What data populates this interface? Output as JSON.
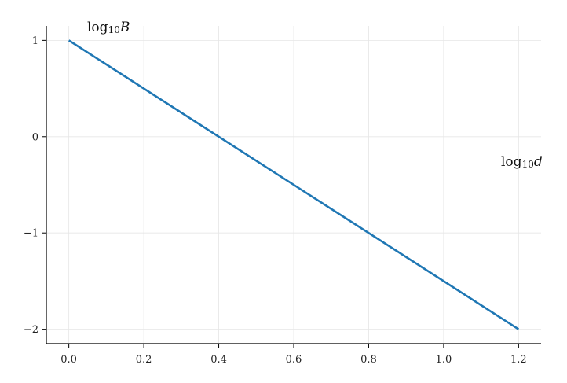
{
  "chart_data": {
    "type": "line",
    "xlabel": {
      "base": "log",
      "sub": "10",
      "var": "d"
    },
    "ylabel": {
      "base": "log",
      "sub": "10",
      "var": "B"
    },
    "xlim": [
      -0.06,
      1.26
    ],
    "ylim": [
      -2.15,
      1.15
    ],
    "xticks": [
      0.0,
      0.2,
      0.4,
      0.6,
      0.8,
      1.0,
      1.2
    ],
    "xtick_labels": [
      "0.0",
      "0.2",
      "0.4",
      "0.6",
      "0.8",
      "1.0",
      "1.2"
    ],
    "yticks": [
      1,
      0,
      -1,
      -2
    ],
    "ytick_labels": [
      "1",
      "0",
      "−1",
      "−2"
    ],
    "grid": true,
    "series": [
      {
        "x": [
          0.0,
          1.2
        ],
        "y": [
          1.0,
          -2.0
        ],
        "color": "#1f77b4"
      }
    ]
  }
}
